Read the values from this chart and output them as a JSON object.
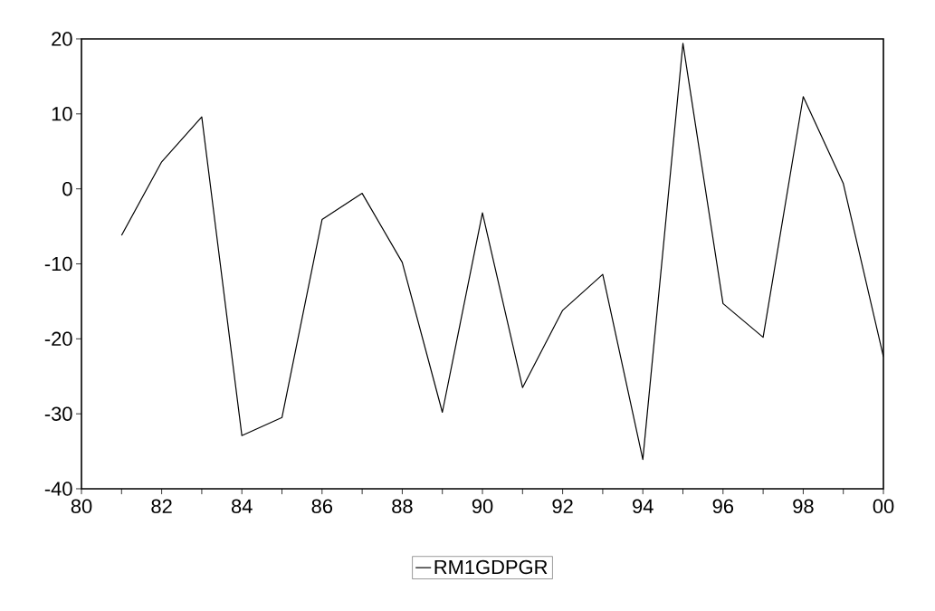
{
  "chart_data": {
    "type": "line",
    "x": [
      1981,
      1982,
      1983,
      1984,
      1985,
      1986,
      1987,
      1988,
      1989,
      1990,
      1991,
      1992,
      1993,
      1994,
      1995,
      1996,
      1997,
      1998,
      1999,
      2000
    ],
    "series": [
      {
        "name": "RM1GDPGR",
        "color": "#000000",
        "values": [
          -6.2,
          3.6,
          9.6,
          -32.9,
          -30.5,
          -4.1,
          -0.6,
          -9.8,
          -29.8,
          -3.2,
          -26.5,
          -16.2,
          -11.4,
          -36.1,
          19.4,
          -15.3,
          -19.8,
          12.3,
          0.7,
          -22.4
        ]
      }
    ],
    "xlim": [
      1980,
      2000
    ],
    "xticks": [
      {
        "value": 1980,
        "label": "80"
      },
      {
        "value": 1981,
        "label": null
      },
      {
        "value": 1982,
        "label": "82"
      },
      {
        "value": 1983,
        "label": null
      },
      {
        "value": 1984,
        "label": "84"
      },
      {
        "value": 1985,
        "label": null
      },
      {
        "value": 1986,
        "label": "86"
      },
      {
        "value": 1987,
        "label": null
      },
      {
        "value": 1988,
        "label": "88"
      },
      {
        "value": 1989,
        "label": null
      },
      {
        "value": 1990,
        "label": "90"
      },
      {
        "value": 1991,
        "label": null
      },
      {
        "value": 1992,
        "label": "92"
      },
      {
        "value": 1993,
        "label": null
      },
      {
        "value": 1994,
        "label": "94"
      },
      {
        "value": 1995,
        "label": null
      },
      {
        "value": 1996,
        "label": "96"
      },
      {
        "value": 1997,
        "label": null
      },
      {
        "value": 1998,
        "label": "98"
      },
      {
        "value": 1999,
        "label": null
      },
      {
        "value": 2000,
        "label": "00"
      }
    ],
    "ylim": [
      -40,
      20
    ],
    "yticks": [
      -40,
      -30,
      -20,
      -10,
      0,
      10,
      20
    ],
    "grid": false,
    "legend": "bottom",
    "marker": "none",
    "line_style": "solid"
  }
}
